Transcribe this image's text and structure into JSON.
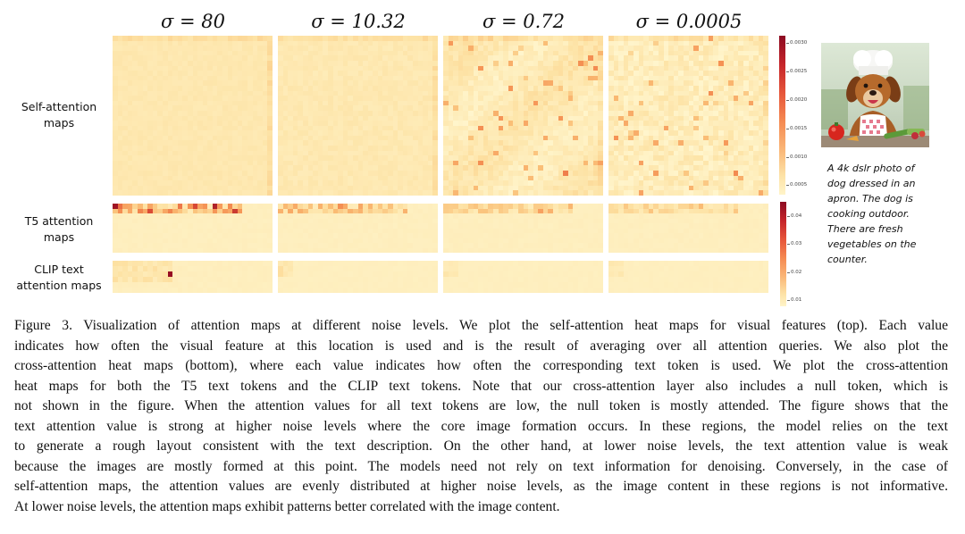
{
  "figure": {
    "column_titles": [
      "σ = 80",
      "σ = 10.32",
      "σ = 0.72",
      "σ = 0.0005"
    ],
    "row_labels": {
      "self_attention": [
        "Self-attention",
        "maps"
      ],
      "t5": [
        "T5 attention",
        "maps"
      ],
      "clip": [
        "CLIP text",
        "attention maps"
      ]
    },
    "colorbar_self": {
      "ticks": [
        "0.0030",
        "0.0025",
        "0.0020",
        "0.0015",
        "0.0010",
        "0.0005"
      ]
    },
    "colorbar_text": {
      "ticks": [
        "0.04",
        "0.03",
        "0.02",
        "0.01"
      ]
    },
    "colors": {
      "low": "#fdf3c4",
      "mid": "#f5a15f",
      "high": "#9e0a20"
    },
    "image_icon": "chef-dog-with-vegetables-image",
    "prompt_lines": [
      "A 4k dslr photo of",
      "dog dressed in an",
      "apron. The dog is",
      "cooking outdoor.",
      "There are fresh",
      "vegetables on the",
      "counter."
    ]
  },
  "caption_lines": [
    "Figure 3. Visualization of attention maps at different noise levels. We plot the self-attention heat maps for visual features (top). Each value",
    "indicates how often the visual feature at this location is used and is the result of averaging over all attention queries. We also plot the",
    "cross-attention heat maps (bottom), where each value indicates how often the corresponding text token is used. We plot the cross-attention",
    "heat maps for both the T5 text tokens and the CLIP text tokens. Note that our cross-attention layer also includes a null token, which is",
    "not shown in the figure. When the attention values for all text tokens are low, the null token is mostly attended. The figure shows that the",
    "text attention value is strong at higher noise levels where the core image formation occurs. In these regions, the model relies on the text",
    "to generate a rough layout consistent with the text description. On the other hand, at lower noise levels, the text attention value is weak",
    "because the images are mostly formed at this point. The models need not rely on text information for denoising. Conversely, in the case of",
    "self-attention maps, the attention values are evenly distributed at higher noise levels, as the image content in these regions is not informative.",
    "At lower noise levels, the attention maps exhibit patterns better correlated with the image content."
  ]
}
